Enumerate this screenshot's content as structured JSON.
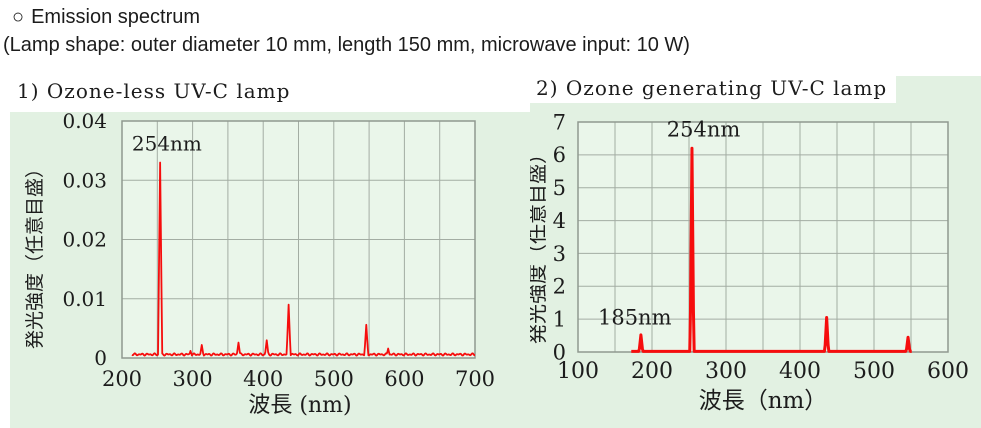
{
  "header": {
    "bullet": "○",
    "title": "Emission spectrum",
    "subtitle": "(Lamp shape: outer diameter 10 mm, length 150 mm, microwave input: 10 W)"
  },
  "colors": {
    "panel_bg": "#e2f1e2",
    "plot_bg": "#eaf6ea",
    "grid": "#a3ada3",
    "border": "#8f998f",
    "line": "#f60d0d",
    "text": "#1c1c1c"
  },
  "chart_data": [
    {
      "type": "line",
      "title": "1) Ozone-less UV-C lamp",
      "xlabel": "波長 (nm)",
      "ylabel": "発光強度（任意目盛）",
      "xlim": [
        200,
        700
      ],
      "ylim": [
        0,
        0.04
      ],
      "xticks": [
        200,
        300,
        400,
        500,
        600,
        700
      ],
      "yticks": [
        0,
        0.01,
        0.02,
        0.03,
        0.04
      ],
      "ytick_labels": [
        "0",
        "0.01",
        "0.02",
        "0.03",
        "0.04"
      ],
      "x_grid_step": 50,
      "y_grid_step": 0.01,
      "grid": true,
      "baseline": 0.0006,
      "noise": 0.0002,
      "data_range": [
        214,
        700
      ],
      "peaks": [
        {
          "x": 254,
          "y": 0.033
        },
        {
          "x": 297,
          "y": 0.0012
        },
        {
          "x": 313,
          "y": 0.0022
        },
        {
          "x": 365,
          "y": 0.0026
        },
        {
          "x": 405,
          "y": 0.003
        },
        {
          "x": 436,
          "y": 0.009
        },
        {
          "x": 546,
          "y": 0.0056
        },
        {
          "x": 577,
          "y": 0.0016
        }
      ],
      "annotations": [
        {
          "text": "254nm",
          "x": 214,
          "y": 0.0362
        }
      ]
    },
    {
      "type": "line",
      "title": "2) Ozone generating UV-C lamp",
      "xlabel": "波長（nm）",
      "ylabel": "発光強度（任意目盛）",
      "xlim": [
        100,
        600
      ],
      "ylim": [
        0,
        7
      ],
      "xticks": [
        100,
        200,
        300,
        400,
        500,
        600
      ],
      "yticks": [
        0,
        1,
        2,
        3,
        4,
        5,
        6,
        7
      ],
      "ytick_labels": [
        "0",
        "1",
        "2",
        "3",
        "4",
        "5",
        "6",
        "7"
      ],
      "x_grid_step": 50,
      "y_grid_step": 1,
      "grid": true,
      "baseline": 0.02,
      "noise": 0,
      "data_range": [
        172,
        551
      ],
      "peaks": [
        {
          "x": 185,
          "y": 0.52
        },
        {
          "x": 254,
          "y": 6.2
        },
        {
          "x": 436,
          "y": 1.05
        },
        {
          "x": 546,
          "y": 0.45
        }
      ],
      "annotations": [
        {
          "text": "254nm",
          "x": 220,
          "y": 6.77
        },
        {
          "text": "185nm",
          "x": 127,
          "y": 1.05
        }
      ]
    }
  ]
}
